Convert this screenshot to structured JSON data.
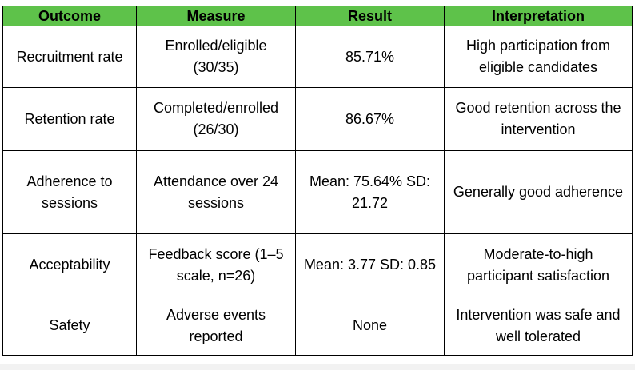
{
  "table": {
    "headers": [
      "Outcome",
      "Measure",
      "Result",
      "Interpretation"
    ],
    "rows": [
      {
        "outcome": "Recruitment rate",
        "measure": "Enrolled/eligible (30/35)",
        "result": "85.71%",
        "interpretation": "High participation from eligible candidates"
      },
      {
        "outcome": "Retention rate",
        "measure": "Completed/enrolled (26/30)",
        "result": "86.67%",
        "interpretation": "Good retention across the intervention"
      },
      {
        "outcome": "Adherence to sessions",
        "measure": "Attendance over 24 sessions",
        "result": "Mean: 75.64% SD: 21.72",
        "interpretation": "Generally good adherence"
      },
      {
        "outcome": "Acceptability",
        "measure": "Feedback score (1–5 scale, n=26)",
        "result": "Mean: 3.77 SD: 0.85",
        "interpretation": "Moderate-to-high participant satisfaction"
      },
      {
        "outcome": "Safety",
        "measure": "Adverse events reported",
        "result": "None",
        "interpretation": "Intervention was safe and well tolerated"
      }
    ]
  },
  "colors": {
    "header_background": "#5ec24a",
    "border": "#000000"
  }
}
